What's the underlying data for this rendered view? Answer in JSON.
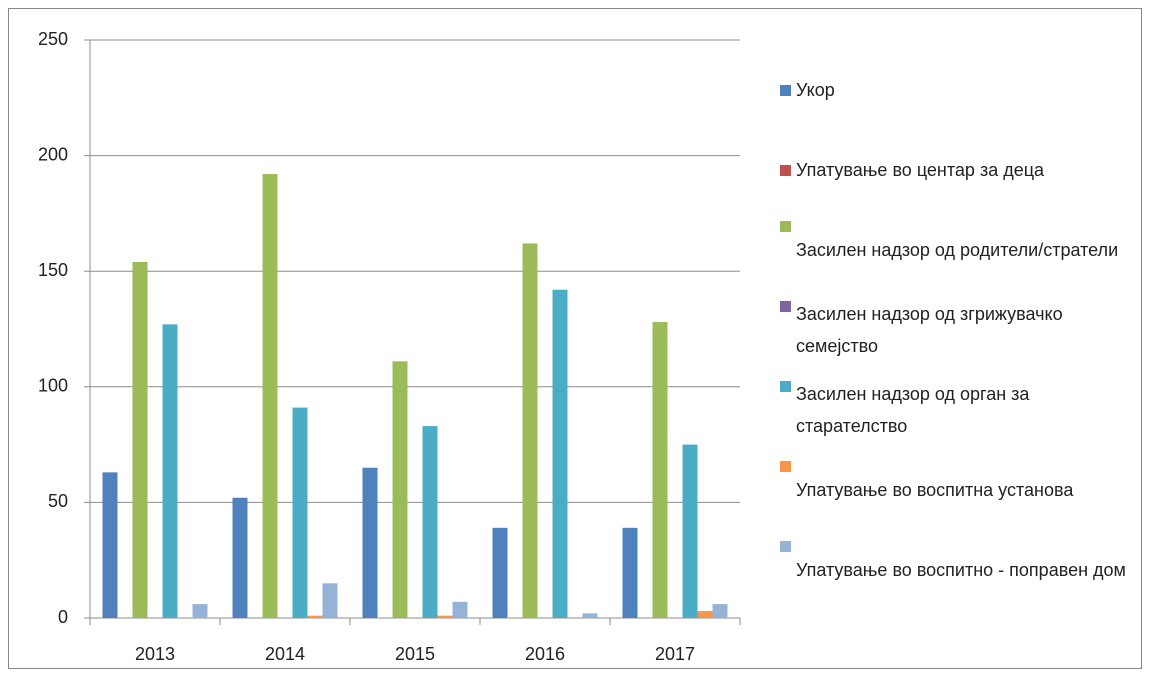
{
  "chart_data": {
    "type": "bar",
    "categories": [
      "2013",
      "2014",
      "2015",
      "2016",
      "2017"
    ],
    "series": [
      {
        "name": "Укор",
        "color": "#4F81BD",
        "values": [
          63,
          52,
          65,
          39,
          39
        ]
      },
      {
        "name": "Упатување во центар за деца",
        "color": "#C0504D",
        "values": [
          0,
          0,
          0,
          0,
          0
        ]
      },
      {
        "name": "Засилен надзор од родители/стратели",
        "color": "#9BBB59",
        "values": [
          154,
          192,
          111,
          162,
          128
        ]
      },
      {
        "name": "Засилен надзор од згрижувачко семејство",
        "color": "#8064A2",
        "values": [
          0,
          0,
          0,
          0,
          0
        ]
      },
      {
        "name": "Засилен надзор од орган за старателство",
        "color": "#4BACC6",
        "values": [
          127,
          91,
          83,
          142,
          75
        ]
      },
      {
        "name": "Упатување во воспитна установа",
        "color": "#F79646",
        "values": [
          0,
          1,
          1,
          0,
          3
        ]
      },
      {
        "name": "Упатување во воспитно - поправен дом",
        "color": "#95B3D7",
        "values": [
          6,
          15,
          7,
          2,
          6
        ]
      }
    ],
    "ylim": [
      0,
      250
    ],
    "yticks": [
      0,
      50,
      100,
      150,
      200,
      250
    ],
    "grid": true,
    "legend": "right"
  }
}
